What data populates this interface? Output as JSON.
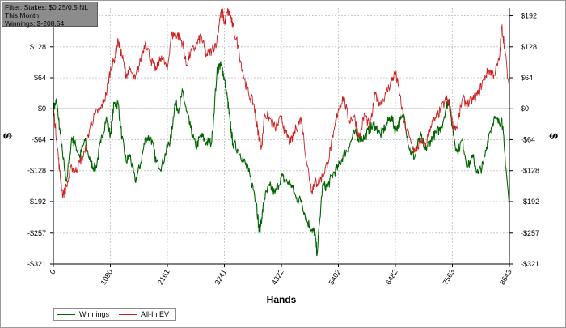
{
  "filter_box": {
    "line1": "Filter: Stakes: $0.25/0.5 NL",
    "line2": "This Month",
    "line3": "Winnings: $-208.54"
  },
  "chart_data": {
    "type": "line",
    "xlabel": "Hands",
    "ylabel": "$",
    "xlim": [
      0,
      8643
    ],
    "ylim": [
      -321,
      208
    ],
    "x_ticks": [
      0,
      1080,
      2161,
      3241,
      4322,
      5402,
      6482,
      7563,
      8643
    ],
    "y_ticks": [
      192,
      128,
      64,
      0,
      -64,
      -128,
      -192,
      -257,
      -321
    ],
    "y_tick_labels": [
      "$192",
      "$128",
      "$64",
      "$0",
      "-$64",
      "-$128",
      "-$192",
      "-$257",
      "-$321"
    ],
    "grid": true,
    "legend_position": "bottom-left",
    "series": [
      {
        "name": "Winnings",
        "color": "#006400",
        "x": [
          0,
          60,
          120,
          180,
          250,
          350,
          420,
          500,
          600,
          700,
          800,
          900,
          1000,
          1080,
          1150,
          1230,
          1300,
          1380,
          1450,
          1550,
          1650,
          1750,
          1850,
          1950,
          2050,
          2161,
          2230,
          2300,
          2380,
          2450,
          2520,
          2600,
          2700,
          2800,
          2900,
          3000,
          3100,
          3150,
          3200,
          3241,
          3300,
          3350,
          3400,
          3500,
          3600,
          3700,
          3800,
          3850,
          3900,
          3950,
          4000,
          4100,
          4200,
          4322,
          4400,
          4500,
          4600,
          4700,
          4800,
          4900,
          4950,
          5000,
          5100,
          5200,
          5300,
          5402,
          5500,
          5600,
          5700,
          5800,
          5900,
          6000,
          6100,
          6200,
          6300,
          6400,
          6482,
          6550,
          6650,
          6750,
          6850,
          6950,
          7050,
          7150,
          7250,
          7350,
          7450,
          7500,
          7563,
          7650,
          7750,
          7850,
          7950,
          8050,
          8150,
          8250,
          8350,
          8450,
          8500,
          8550,
          8643
        ],
        "y": [
          0,
          15,
          -40,
          -100,
          -150,
          -60,
          -75,
          -100,
          -65,
          -110,
          -125,
          -70,
          -20,
          -55,
          10,
          10,
          -60,
          -110,
          -95,
          -150,
          -115,
          -60,
          -60,
          -110,
          -120,
          -80,
          -60,
          10,
          0,
          35,
          -5,
          -40,
          -80,
          -55,
          -70,
          -70,
          75,
          90,
          85,
          60,
          20,
          -30,
          -70,
          -85,
          -105,
          -130,
          -170,
          -195,
          -255,
          -225,
          -185,
          -160,
          -175,
          -140,
          -150,
          -155,
          -185,
          -190,
          -230,
          -250,
          -255,
          -300,
          -160,
          -160,
          -135,
          -120,
          -95,
          -80,
          -50,
          -60,
          -60,
          -40,
          -35,
          -55,
          -35,
          -15,
          -45,
          -30,
          -15,
          -85,
          -100,
          -55,
          -85,
          -65,
          -50,
          -40,
          5,
          20,
          -40,
          -90,
          -65,
          -120,
          -100,
          -135,
          -115,
          -55,
          -20,
          -30,
          -20,
          -85,
          -205
        ]
      },
      {
        "name": "All-In EV",
        "color": "#cc2020",
        "x": [
          0,
          60,
          120,
          180,
          250,
          350,
          420,
          500,
          600,
          700,
          800,
          900,
          1000,
          1080,
          1150,
          1230,
          1300,
          1380,
          1450,
          1550,
          1650,
          1750,
          1850,
          1950,
          2050,
          2161,
          2230,
          2300,
          2380,
          2450,
          2520,
          2600,
          2700,
          2800,
          2900,
          3000,
          3100,
          3150,
          3200,
          3241,
          3300,
          3350,
          3400,
          3500,
          3600,
          3700,
          3800,
          3850,
          3900,
          3950,
          4000,
          4100,
          4200,
          4322,
          4400,
          4500,
          4600,
          4700,
          4800,
          4900,
          4950,
          5000,
          5100,
          5200,
          5300,
          5402,
          5500,
          5600,
          5700,
          5800,
          5900,
          6000,
          6100,
          6200,
          6300,
          6400,
          6482,
          6550,
          6650,
          6750,
          6850,
          6950,
          7050,
          7150,
          7250,
          7350,
          7450,
          7500,
          7563,
          7650,
          7750,
          7850,
          7950,
          8050,
          8150,
          8250,
          8350,
          8450,
          8500,
          8550,
          8643
        ],
        "y": [
          0,
          -60,
          -130,
          -180,
          -160,
          -120,
          -130,
          -110,
          -90,
          -35,
          -10,
          0,
          30,
          80,
          100,
          140,
          110,
          70,
          80,
          60,
          100,
          140,
          100,
          80,
          110,
          80,
          150,
          155,
          150,
          135,
          90,
          115,
          130,
          150,
          110,
          120,
          140,
          185,
          205,
          175,
          200,
          195,
          170,
          130,
          70,
          30,
          10,
          -30,
          -60,
          -80,
          -10,
          -20,
          -40,
          -20,
          -50,
          -70,
          -40,
          -20,
          -110,
          -170,
          -150,
          -155,
          -140,
          -110,
          -60,
          0,
          25,
          -25,
          -15,
          -60,
          -10,
          -40,
          30,
          10,
          30,
          55,
          75,
          40,
          -30,
          -60,
          -90,
          -70,
          -75,
          -35,
          -20,
          0,
          20,
          10,
          -30,
          -40,
          20,
          10,
          20,
          30,
          60,
          80,
          70,
          100,
          170,
          130,
          30
        ]
      }
    ]
  }
}
